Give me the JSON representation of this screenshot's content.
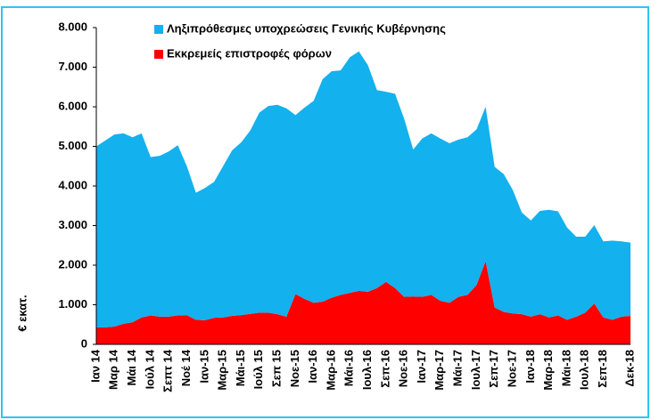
{
  "chart_data": {
    "type": "stacked_area",
    "y_label": "€ εκατ.",
    "categories": [
      "Ιαν 14",
      null,
      "Μαρ 14",
      null,
      "Μάι 14",
      null,
      "Ιούλ 14",
      null,
      "Σεπτ 14",
      null,
      "Νοέ 14",
      null,
      "Ιαν-15",
      null,
      "Μαρ-15",
      null,
      "Μάι-15",
      null,
      "Ιούλ 15",
      null,
      "Σεπ 15",
      null,
      "Νοε-15",
      null,
      "Ιαν-16",
      null,
      "Μαρ-16",
      null,
      "Μάι-16",
      null,
      "Ιουλ-16",
      null,
      "Σεπ-16",
      null,
      "Νοε-16",
      null,
      "Ιαν-17",
      null,
      "Μαρ-17",
      null,
      "Μάι-17",
      null,
      "Ιουλ-17",
      null,
      "Σεπ-17",
      null,
      "Νοε-17",
      null,
      "Ιαν-18",
      null,
      "Μαρ-18",
      null,
      "Μάι-18",
      null,
      "Ιουλ-18",
      null,
      "Σεπ-18",
      null,
      null,
      "Δεκ-18"
    ],
    "series": [
      {
        "name": "Εκκρεμείς επιστροφές φόρων",
        "color": "#ff0000",
        "values": [
          430,
          430,
          450,
          520,
          560,
          680,
          730,
          700,
          700,
          730,
          740,
          620,
          610,
          670,
          680,
          720,
          740,
          770,
          800,
          800,
          760,
          700,
          1270,
          1150,
          1050,
          1080,
          1180,
          1250,
          1300,
          1350,
          1330,
          1420,
          1580,
          1420,
          1200,
          1210,
          1200,
          1250,
          1100,
          1050,
          1200,
          1250,
          1500,
          2100,
          930,
          820,
          780,
          760,
          700,
          760,
          680,
          730,
          620,
          700,
          800,
          1030,
          680,
          620,
          700,
          720
        ]
      },
      {
        "name": "Ληξιπρόθεσμες υποχρεώσεις Γενικής Κυβέρνησης",
        "color": "#13b1ee",
        "values": [
          4570,
          4720,
          4850,
          4810,
          4670,
          4650,
          4000,
          4060,
          4170,
          4300,
          3760,
          3210,
          3340,
          3430,
          3820,
          4180,
          4360,
          4630,
          5050,
          5220,
          5290,
          5260,
          4520,
          4830,
          5100,
          5620,
          5720,
          5670,
          5950,
          6050,
          5720,
          5000,
          4800,
          4910,
          4500,
          3710,
          4000,
          4080,
          4100,
          4030,
          3970,
          3980,
          3930,
          3900,
          3550,
          3480,
          3120,
          2570,
          2430,
          2610,
          2720,
          2630,
          2330,
          2020,
          1920,
          1980,
          1920,
          2000,
          1900,
          1850
        ]
      }
    ],
    "ylim": [
      0,
      8000
    ],
    "yticks": [
      0,
      {
        "value": 1000,
        "label": "1.000"
      },
      {
        "value": 2000,
        "label": "2.000"
      },
      {
        "value": 3000,
        "label": "3.000"
      },
      {
        "value": 4000,
        "label": "4.000"
      },
      {
        "value": 5000,
        "label": "5.000"
      },
      {
        "value": 6000,
        "label": "6.000"
      },
      {
        "value": 7000,
        "label": "7.000"
      },
      {
        "value": 8000,
        "label": "8.000"
      }
    ]
  }
}
